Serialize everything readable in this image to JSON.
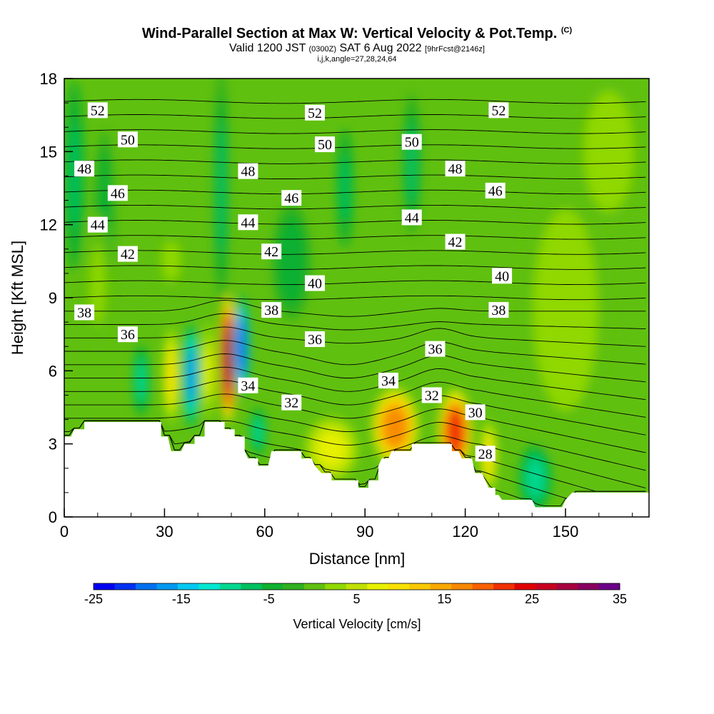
{
  "title": {
    "main": "Wind-Parallel Section at Max W: Vertical Velocity & Pot.Temp.",
    "copyright": "(C)",
    "valid_prefix": "Valid 1200 JST",
    "valid_utc": "(0300Z)",
    "valid_date": "SAT 6 Aug 2022",
    "forecast": "[9hrFcst@2146z]",
    "indices": "i,j,k,angle=27,28,24,64"
  },
  "chart_data": {
    "type": "heatmap",
    "xlabel": "Distance [nm]",
    "ylabel": "Height [Kft MSL]",
    "xlim": [
      0,
      175
    ],
    "ylim": [
      0,
      18
    ],
    "xticks": [
      "0",
      "30",
      "60",
      "90",
      "120",
      "150"
    ],
    "yticks": [
      "0",
      "3",
      "6",
      "9",
      "12",
      "15",
      "18"
    ],
    "colorbar": {
      "label": "Vertical Velocity [cm/s]",
      "range": [
        -25,
        35
      ],
      "step": 2.5,
      "ticks": [
        "-25",
        "-15",
        "-5",
        "5",
        "15",
        "25",
        "35"
      ],
      "colors": [
        "#0000f0",
        "#0030f0",
        "#0070f0",
        "#0098f0",
        "#00c8f0",
        "#00e8d0",
        "#00d890",
        "#00c060",
        "#10b030",
        "#30b020",
        "#60c010",
        "#90d800",
        "#c0e000",
        "#e8f000",
        "#f8e000",
        "#f8c800",
        "#f8a800",
        "#f88800",
        "#f86000",
        "#f03000",
        "#e00000",
        "#c80020",
        "#a80040",
        "#880060",
        "#6c0088"
      ]
    },
    "terrain_kft": [
      [
        0,
        3.3
      ],
      [
        2,
        3.3
      ],
      [
        3,
        3.6
      ],
      [
        6,
        3.6
      ],
      [
        6,
        3.9
      ],
      [
        29,
        3.9
      ],
      [
        29,
        3.3
      ],
      [
        31,
        3.3
      ],
      [
        32,
        2.7
      ],
      [
        35,
        2.7
      ],
      [
        36,
        3
      ],
      [
        39,
        3
      ],
      [
        39,
        3.3
      ],
      [
        42,
        3.3
      ],
      [
        42,
        3.9
      ],
      [
        48,
        3.9
      ],
      [
        48,
        3.6
      ],
      [
        51,
        3.6
      ],
      [
        51,
        3.3
      ],
      [
        54,
        3.3
      ],
      [
        54,
        2.7
      ],
      [
        55,
        2.4
      ],
      [
        58,
        2.4
      ],
      [
        58,
        2.1
      ],
      [
        61,
        2.1
      ],
      [
        62,
        2.7
      ],
      [
        71,
        2.7
      ],
      [
        71,
        2.4
      ],
      [
        74,
        2.4
      ],
      [
        75,
        2.1
      ],
      [
        77,
        1.8
      ],
      [
        80,
        1.8
      ],
      [
        80,
        1.5
      ],
      [
        84,
        1.5
      ],
      [
        84,
        1.5
      ],
      [
        88,
        1.5
      ],
      [
        88,
        1.2
      ],
      [
        91,
        1.2
      ],
      [
        91,
        1.5
      ],
      [
        94,
        1.5
      ],
      [
        94,
        2.1
      ],
      [
        95,
        2.4
      ],
      [
        97,
        2.4
      ],
      [
        98,
        2.7
      ],
      [
        104,
        2.7
      ],
      [
        104,
        3
      ],
      [
        116,
        3
      ],
      [
        116,
        2.7
      ],
      [
        118,
        2.7
      ],
      [
        119,
        2.4
      ],
      [
        122,
        2.4
      ],
      [
        123,
        1.8
      ],
      [
        125,
        1.8
      ],
      [
        126,
        1.5
      ],
      [
        127,
        1.2
      ],
      [
        129,
        1.2
      ],
      [
        129,
        0.9
      ],
      [
        130,
        0.9
      ],
      [
        131,
        0.7
      ],
      [
        140,
        0.7
      ],
      [
        141,
        0.4
      ],
      [
        149,
        0.4
      ],
      [
        150,
        0.7
      ],
      [
        152,
        1
      ],
      [
        175,
        1
      ]
    ],
    "theta_contours_c": [
      28,
      30,
      32,
      34,
      36,
      38,
      40,
      42,
      44,
      46,
      48,
      50,
      52
    ],
    "contour_labels": [
      {
        "text": "52",
        "x": 10,
        "y": 16.7
      },
      {
        "text": "52",
        "x": 75,
        "y": 16.6
      },
      {
        "text": "52",
        "x": 130,
        "y": 16.7
      },
      {
        "text": "50",
        "x": 19,
        "y": 15.5
      },
      {
        "text": "50",
        "x": 78,
        "y": 15.3
      },
      {
        "text": "50",
        "x": 104,
        "y": 15.4
      },
      {
        "text": "48",
        "x": 6,
        "y": 14.3
      },
      {
        "text": "48",
        "x": 55,
        "y": 14.2
      },
      {
        "text": "48",
        "x": 117,
        "y": 14.3
      },
      {
        "text": "46",
        "x": 16,
        "y": 13.3
      },
      {
        "text": "46",
        "x": 68,
        "y": 13.1
      },
      {
        "text": "46",
        "x": 129,
        "y": 13.4
      },
      {
        "text": "44",
        "x": 10,
        "y": 12
      },
      {
        "text": "44",
        "x": 55,
        "y": 12.1
      },
      {
        "text": "44",
        "x": 104,
        "y": 12.3
      },
      {
        "text": "42",
        "x": 19,
        "y": 10.8
      },
      {
        "text": "42",
        "x": 62,
        "y": 10.9
      },
      {
        "text": "42",
        "x": 117,
        "y": 11.3
      },
      {
        "text": "40",
        "x": 75,
        "y": 9.6
      },
      {
        "text": "40",
        "x": 131,
        "y": 9.9
      },
      {
        "text": "38",
        "x": 6,
        "y": 8.4
      },
      {
        "text": "38",
        "x": 62,
        "y": 8.5
      },
      {
        "text": "38",
        "x": 130,
        "y": 8.5
      },
      {
        "text": "36",
        "x": 19,
        "y": 7.5
      },
      {
        "text": "36",
        "x": 75,
        "y": 7.3
      },
      {
        "text": "36",
        "x": 111,
        "y": 6.9
      },
      {
        "text": "34",
        "x": 55,
        "y": 5.4
      },
      {
        "text": "34",
        "x": 97,
        "y": 5.6
      },
      {
        "text": "32",
        "x": 68,
        "y": 4.7
      },
      {
        "text": "32",
        "x": 110,
        "y": 5
      },
      {
        "text": "30",
        "x": 123,
        "y": 4.3
      },
      {
        "text": "28",
        "x": 126,
        "y": 2.6
      }
    ],
    "blobs": [
      {
        "x": 49,
        "y": 6.5,
        "rx": 2.6,
        "ry": 2.6,
        "w": 30
      },
      {
        "x": 53,
        "y": 7,
        "rx": 2.6,
        "ry": 2.2,
        "w": -18
      },
      {
        "x": 38,
        "y": 5.8,
        "rx": 2.6,
        "ry": 2.2,
        "w": -16
      },
      {
        "x": 32,
        "y": 5.8,
        "rx": 2.5,
        "ry": 2.0,
        "w": 12
      },
      {
        "x": 43,
        "y": 6.0,
        "rx": 2.2,
        "ry": 2.0,
        "w": 8
      },
      {
        "x": 23,
        "y": 5.6,
        "rx": 2.5,
        "ry": 1.5,
        "w": -8
      },
      {
        "x": 58,
        "y": 3.5,
        "rx": 2.5,
        "ry": 1.0,
        "w": -10
      },
      {
        "x": 99,
        "y": 3.7,
        "rx": 7.0,
        "ry": 1.6,
        "w": 18
      },
      {
        "x": 117,
        "y": 3.5,
        "rx": 5.0,
        "ry": 1.7,
        "w": 24
      },
      {
        "x": 80,
        "y": 2.8,
        "rx": 8.0,
        "ry": 1.3,
        "w": 9
      },
      {
        "x": 127,
        "y": 2.5,
        "rx": 2.5,
        "ry": 1.5,
        "w": 10
      },
      {
        "x": 141,
        "y": 1.6,
        "rx": 5.0,
        "ry": 1.4,
        "w": -9
      },
      {
        "x": 3,
        "y": 14,
        "rx": 3.0,
        "ry": 4.0,
        "w": -7
      },
      {
        "x": 47,
        "y": 13.5,
        "rx": 2.5,
        "ry": 5.0,
        "w": -6
      },
      {
        "x": 84,
        "y": 13.5,
        "rx": 2.5,
        "ry": 2.5,
        "w": -7
      },
      {
        "x": 104,
        "y": 14.5,
        "rx": 3.0,
        "ry": 3.0,
        "w": -6
      },
      {
        "x": 68,
        "y": 10.5,
        "rx": 6.0,
        "ry": 2.5,
        "w": -4.5
      },
      {
        "x": 12,
        "y": 12.5,
        "rx": 3.0,
        "ry": 3.5,
        "w": -5
      },
      {
        "x": 150,
        "y": 8.5,
        "rx": 14.0,
        "ry": 6.0,
        "w": 3.5
      },
      {
        "x": 163,
        "y": 15.0,
        "rx": 9.0,
        "ry": 3.0,
        "w": 4.5
      },
      {
        "x": 32,
        "y": 10.5,
        "rx": 4.0,
        "ry": 1.2,
        "w": 3.5
      },
      {
        "x": 10,
        "y": 9.5,
        "rx": 4.0,
        "ry": 3.0,
        "w": 3
      }
    ]
  }
}
